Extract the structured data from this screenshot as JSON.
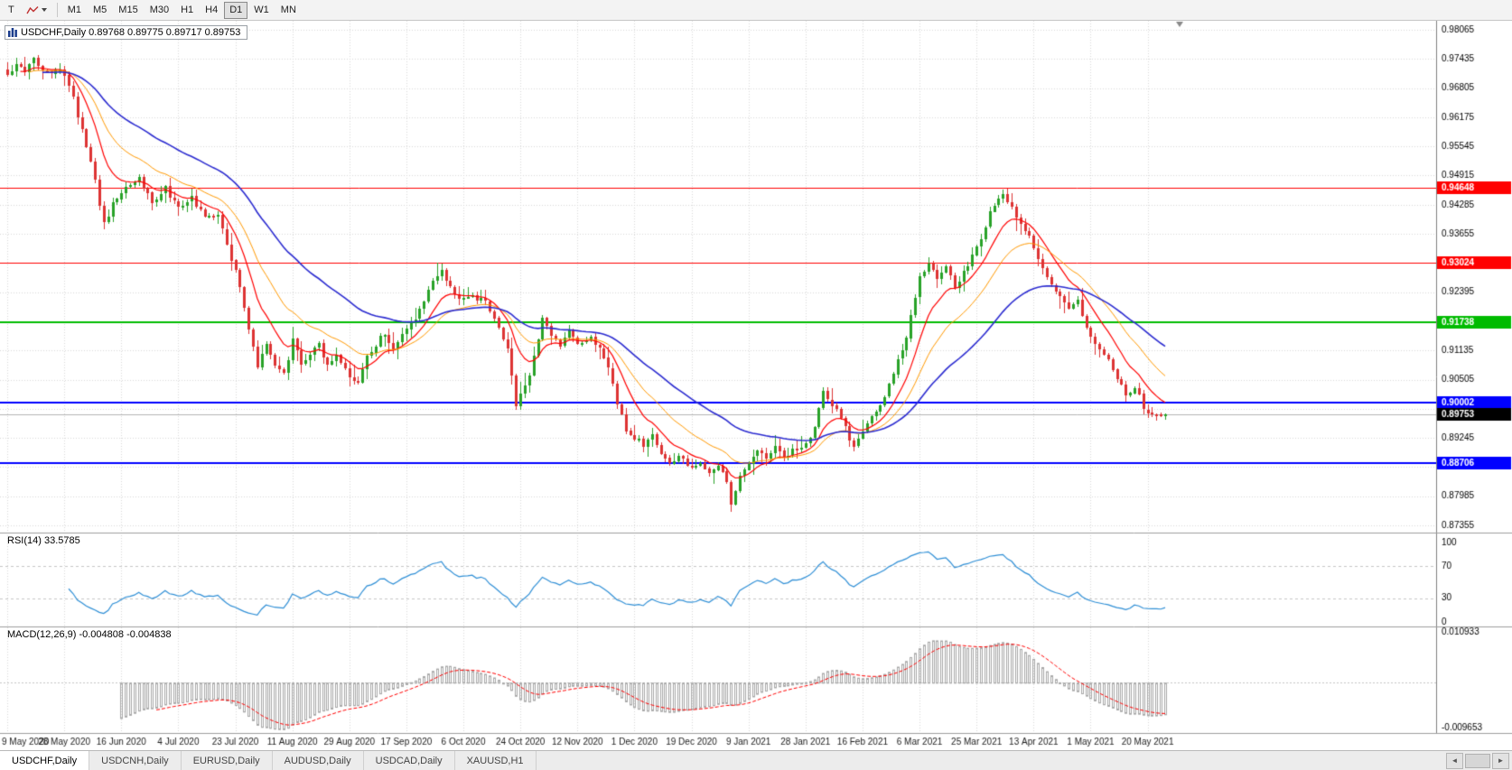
{
  "toolbar": {
    "tool_button_label": "T",
    "timeframes": [
      "M1",
      "M5",
      "M15",
      "M30",
      "H1",
      "H4",
      "D1",
      "W1",
      "MN"
    ],
    "active_timeframe": "D1"
  },
  "chart": {
    "title": "USDCHF,Daily 0.89768 0.89775 0.89717 0.89753",
    "symbol": "USDCHF",
    "period": "Daily",
    "open": "0.89768",
    "high": "0.89775",
    "low": "0.89717",
    "close": "0.89753",
    "rsi_label": "RSI(14) 33.5785",
    "macd_label": "MACD(12,26,9) -0.004808 -0.004838"
  },
  "chart_data": {
    "type": "candlestick",
    "symbol": "USDCHF",
    "timeframe": "D1",
    "candle_count": 265,
    "candles_per_label": 13,
    "price_axis": {
      "max": 0.98065,
      "min": 0.87355,
      "tick_step": 0.0063,
      "ticks": [
        "0.98065",
        "0.97435",
        "0.96805",
        "0.96175",
        "0.95545",
        "0.94915",
        "0.94285",
        "0.93655",
        "0.93025",
        "0.92395",
        "0.91765",
        "0.91135",
        "0.90505",
        "0.89875",
        "0.89245",
        "0.88615",
        "0.87985",
        "0.87355"
      ]
    },
    "date_labels": [
      "9 May 2020",
      "28 May 2020",
      "16 Jun 2020",
      "4 Jul 2020",
      "23 Jul 2020",
      "11 Aug 2020",
      "29 Aug 2020",
      "17 Sep 2020",
      "6 Oct 2020",
      "24 Oct 2020",
      "12 Nov 2020",
      "1 Dec 2020",
      "19 Dec 2020",
      "9 Jan 2021",
      "28 Jan 2021",
      "16 Feb 2021",
      "6 Mar 2021",
      "25 Mar 2021",
      "13 Apr 2021",
      "1 May 2021",
      "20 May 2021"
    ],
    "close_waypoints": [
      [
        0,
        0.9705
      ],
      [
        2,
        0.9738
      ],
      [
        4,
        0.9718
      ],
      [
        6,
        0.9745
      ],
      [
        9,
        0.9712
      ],
      [
        12,
        0.9728
      ],
      [
        14,
        0.969
      ],
      [
        17,
        0.959
      ],
      [
        20,
        0.948
      ],
      [
        22,
        0.9385
      ],
      [
        24,
        0.9432
      ],
      [
        26,
        0.9455
      ],
      [
        28,
        0.9472
      ],
      [
        30,
        0.949
      ],
      [
        33,
        0.9428
      ],
      [
        36,
        0.9462
      ],
      [
        39,
        0.942
      ],
      [
        42,
        0.9442
      ],
      [
        45,
        0.9398
      ],
      [
        48,
        0.9408
      ],
      [
        50,
        0.934
      ],
      [
        52,
        0.9288
      ],
      [
        54,
        0.921
      ],
      [
        57,
        0.9075
      ],
      [
        59,
        0.913
      ],
      [
        61,
        0.9078
      ],
      [
        63,
        0.906
      ],
      [
        65,
        0.9138
      ],
      [
        67,
        0.9085
      ],
      [
        69,
        0.9108
      ],
      [
        71,
        0.9125
      ],
      [
        73,
        0.9082
      ],
      [
        75,
        0.91
      ],
      [
        78,
        0.9058
      ],
      [
        80,
        0.9042
      ],
      [
        82,
        0.91
      ],
      [
        84,
        0.9128
      ],
      [
        86,
        0.915
      ],
      [
        88,
        0.9112
      ],
      [
        91,
        0.9158
      ],
      [
        94,
        0.92
      ],
      [
        97,
        0.9262
      ],
      [
        99,
        0.9288
      ],
      [
        101,
        0.9245
      ],
      [
        104,
        0.9222
      ],
      [
        106,
        0.9233
      ],
      [
        109,
        0.9214
      ],
      [
        112,
        0.916
      ],
      [
        114,
        0.912
      ],
      [
        116,
        0.8992
      ],
      [
        119,
        0.906
      ],
      [
        122,
        0.9178
      ],
      [
        124,
        0.915
      ],
      [
        126,
        0.9122
      ],
      [
        128,
        0.9155
      ],
      [
        130,
        0.9132
      ],
      [
        133,
        0.9143
      ],
      [
        135,
        0.912
      ],
      [
        137,
        0.9082
      ],
      [
        139,
        0.9002
      ],
      [
        141,
        0.8942
      ],
      [
        143,
        0.8925
      ],
      [
        145,
        0.8906
      ],
      [
        147,
        0.8926
      ],
      [
        149,
        0.8892
      ],
      [
        151,
        0.8866
      ],
      [
        153,
        0.8886
      ],
      [
        156,
        0.8856
      ],
      [
        158,
        0.8872
      ],
      [
        160,
        0.8846
      ],
      [
        162,
        0.8866
      ],
      [
        164,
        0.8832
      ],
      [
        165,
        0.8778
      ],
      [
        167,
        0.8842
      ],
      [
        169,
        0.8866
      ],
      [
        171,
        0.8895
      ],
      [
        173,
        0.8886
      ],
      [
        175,
        0.8906
      ],
      [
        177,
        0.8882
      ],
      [
        179,
        0.8896
      ],
      [
        182,
        0.8912
      ],
      [
        184,
        0.8946
      ],
      [
        186,
        0.903
      ],
      [
        188,
        0.8996
      ],
      [
        190,
        0.8966
      ],
      [
        193,
        0.8902
      ],
      [
        195,
        0.8936
      ],
      [
        197,
        0.8966
      ],
      [
        199,
        0.8992
      ],
      [
        201,
        0.9042
      ],
      [
        203,
        0.9092
      ],
      [
        205,
        0.9142
      ],
      [
        207,
        0.9232
      ],
      [
        208,
        0.9268
      ],
      [
        210,
        0.9298
      ],
      [
        212,
        0.927
      ],
      [
        214,
        0.9294
      ],
      [
        216,
        0.9252
      ],
      [
        218,
        0.9282
      ],
      [
        220,
        0.9318
      ],
      [
        221,
        0.9336
      ],
      [
        223,
        0.9386
      ],
      [
        225,
        0.9432
      ],
      [
        227,
        0.9456
      ],
      [
        229,
        0.942
      ],
      [
        231,
        0.9382
      ],
      [
        233,
        0.936
      ],
      [
        234,
        0.9332
      ],
      [
        236,
        0.9292
      ],
      [
        238,
        0.9256
      ],
      [
        240,
        0.9232
      ],
      [
        242,
        0.9206
      ],
      [
        244,
        0.9226
      ],
      [
        246,
        0.9162
      ],
      [
        247,
        0.9142
      ],
      [
        249,
        0.9116
      ],
      [
        251,
        0.9092
      ],
      [
        253,
        0.9056
      ],
      [
        255,
        0.9012
      ],
      [
        257,
        0.9036
      ],
      [
        259,
        0.8992
      ],
      [
        261,
        0.8972
      ],
      [
        264,
        0.89753
      ]
    ],
    "last_close": 0.89753,
    "current_price": {
      "value": 0.89753,
      "label": "0.89753",
      "bg": "#000000"
    },
    "hlines": [
      {
        "price": 0.94648,
        "color": "#ff0000",
        "width": 1,
        "label": "0.94648"
      },
      {
        "price": 0.93024,
        "color": "#ff0000",
        "width": 1,
        "label": "0.93024"
      },
      {
        "price": 0.91738,
        "color": "#00bb00",
        "width": 2,
        "label": "0.91738"
      },
      {
        "price": 0.90002,
        "color": "#0000ff",
        "width": 2,
        "label": "0.90002"
      },
      {
        "price": 0.88706,
        "color": "#0000ff",
        "width": 2,
        "label": "0.88706"
      }
    ],
    "colors": {
      "up": "#28a228",
      "down": "#dd3333",
      "ma_fast": "#ff0000",
      "ma_mid": "#ff9900",
      "ma_slow": "#2b2bd0",
      "grid": "#d9d9d9",
      "axis_text": "#000000"
    },
    "moving_averages": [
      {
        "period": 10,
        "color": "#ff0000"
      },
      {
        "period": 21,
        "color": "#ff9900"
      },
      {
        "period": 45,
        "color": "#2b2bd0"
      }
    ],
    "indicators": [
      {
        "name": "RSI",
        "params": "14",
        "label": "RSI(14) 33.5785",
        "value": 33.5785,
        "levels": [
          100,
          70,
          30,
          0
        ],
        "dashed_levels": [
          70,
          30
        ],
        "color": "#2f8fd6"
      },
      {
        "name": "MACD",
        "params": "12,26,9",
        "label": "MACD(12,26,9) -0.004808 -0.004838",
        "macd_value": -0.004808,
        "signal_value": -0.004838,
        "axis_max": 0.010933,
        "axis_min": -0.009653,
        "axis_labels": [
          "0.010933",
          "-0.009653"
        ],
        "histogram_color": "#a8a8a8",
        "signal_color": "#ff0000"
      }
    ]
  },
  "tabs": {
    "items": [
      {
        "label": "USDCHF,Daily",
        "active": true
      },
      {
        "label": "USDCNH,Daily",
        "active": false
      },
      {
        "label": "EURUSD,Daily",
        "active": false
      },
      {
        "label": "AUDUSD,Daily",
        "active": false
      },
      {
        "label": "USDCAD,Daily",
        "active": false
      },
      {
        "label": "XAUUSD,H1",
        "active": false
      }
    ],
    "scroll_left_glyph": "◄",
    "scroll_right_glyph": "►"
  }
}
